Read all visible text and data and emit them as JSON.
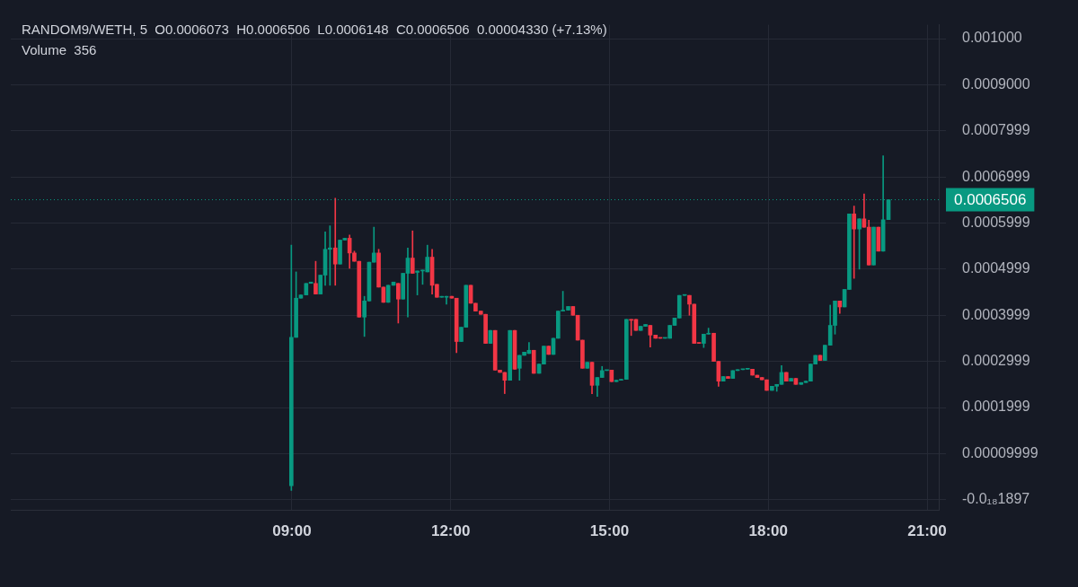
{
  "chart_data": {
    "type": "candlestick",
    "title": "RANDOM9/WETH, 5  O0.0006073  H0.0006506  L0.0006148  C0.0006506  0.00004330 (+7.13%)",
    "subtitle": "Volume  356",
    "x": [
      8.99,
      9.08,
      9.17,
      9.27,
      9.36,
      9.45,
      9.54,
      9.63,
      9.72,
      9.82,
      9.91,
      10.0,
      10.09,
      10.18,
      10.27,
      10.37,
      10.46,
      10.55,
      10.64,
      10.73,
      10.82,
      10.92,
      11.01,
      11.1,
      11.19,
      11.28,
      11.37,
      11.47,
      11.56,
      11.65,
      11.74,
      11.83,
      11.92,
      12.02,
      12.11,
      12.2,
      12.29,
      12.38,
      12.47,
      12.57,
      12.66,
      12.75,
      12.84,
      12.93,
      13.02,
      13.12,
      13.21,
      13.3,
      13.39,
      13.48,
      13.57,
      13.67,
      13.76,
      13.85,
      13.94,
      14.03,
      14.12,
      14.22,
      14.31,
      14.4,
      14.49,
      14.58,
      14.67,
      14.77,
      14.86,
      14.95,
      15.04,
      15.13,
      15.22,
      15.32,
      15.41,
      15.5,
      15.59,
      15.68,
      15.77,
      15.87,
      15.96,
      16.05,
      16.14,
      16.23,
      16.32,
      16.42,
      16.51,
      16.6,
      16.69,
      16.78,
      16.87,
      16.97,
      17.06,
      17.15,
      17.24,
      17.33,
      17.42,
      17.52,
      17.61,
      17.7,
      17.79,
      17.88,
      17.97,
      18.07,
      18.16,
      18.25,
      18.34,
      18.43,
      18.52,
      18.62,
      18.71,
      18.8,
      18.89,
      18.98,
      19.07,
      19.17,
      19.26,
      19.35,
      19.44,
      19.53,
      19.62,
      19.72,
      19.81,
      19.9,
      19.99,
      20.08,
      20.17,
      20.27
    ],
    "series": [
      {
        "type": "candlestick",
        "ohlc": [
          [
            3e-05,
            0.000552,
            2e-05,
            0.000352
          ],
          [
            0.000352,
            0.000494,
            0.000352,
            0.000437
          ],
          [
            0.000437,
            0.000444,
            0.000437,
            0.000444
          ],
          [
            0.000444,
            0.000469,
            0.000444,
            0.000469
          ],
          [
            0.000469,
            0.000472,
            0.000469,
            0.000472
          ],
          [
            0.000469,
            0.000517,
            0.000446,
            0.000446
          ],
          [
            0.000446,
            0.000487,
            0.000446,
            0.000487
          ],
          [
            0.000487,
            0.000581,
            0.000465,
            0.000543
          ],
          [
            0.000543,
            0.000594,
            0.000465,
            0.000546
          ],
          [
            0.000546,
            0.000654,
            0.000465,
            0.000511
          ],
          [
            0.000511,
            0.000563,
            0.000511,
            0.000563
          ],
          [
            0.000563,
            0.000567,
            0.000563,
            0.000567
          ],
          [
            0.000567,
            0.000574,
            0.000502,
            0.000535
          ],
          [
            0.000535,
            0.000539,
            0.000517,
            0.000517
          ],
          [
            0.000517,
            0.000517,
            0.000396,
            0.000396
          ],
          [
            0.000396,
            0.000441,
            0.000354,
            0.000431
          ],
          [
            0.000431,
            0.000515,
            0.000431,
            0.000515
          ],
          [
            0.000515,
            0.000591,
            0.000515,
            0.000535
          ],
          [
            0.000535,
            0.000543,
            0.000461,
            0.000461
          ],
          [
            0.000461,
            0.000461,
            0.000428,
            0.000428
          ],
          [
            0.000428,
            0.000465,
            0.000428,
            0.000465
          ],
          [
            0.000465,
            0.000472,
            0.000465,
            0.000472
          ],
          [
            0.000469,
            0.000469,
            0.000383,
            0.000435
          ],
          [
            0.000435,
            0.000491,
            0.000435,
            0.000491
          ],
          [
            0.000491,
            0.000546,
            0.000396,
            0.000524
          ],
          [
            0.000524,
            0.000583,
            0.000491,
            0.000491
          ],
          [
            0.000493,
            0.000496,
            0.000444,
            0.000496
          ],
          [
            0.000496,
            0.000498,
            0.000467,
            0.000498
          ],
          [
            0.000494,
            0.000552,
            0.000494,
            0.000526
          ],
          [
            0.000526,
            0.000543,
            0.000446,
            0.000465
          ],
          [
            0.000467,
            0.000467,
            0.000439,
            0.000439
          ],
          [
            0.000439,
            0.000441,
            0.000439,
            0.000441
          ],
          [
            0.000439,
            0.000441,
            0.000424,
            0.000441
          ],
          [
            0.000441,
            0.000441,
            0.000437,
            0.000437
          ],
          [
            0.000437,
            0.000437,
            0.000319,
            0.000343
          ],
          [
            0.000343,
            0.000374,
            0.000343,
            0.000374
          ],
          [
            0.000374,
            0.000465,
            0.000374,
            0.000465
          ],
          [
            0.000465,
            0.000465,
            0.000426,
            0.000426
          ],
          [
            0.000426,
            0.000426,
            0.000409,
            0.000409
          ],
          [
            0.000409,
            0.000409,
            0.000402,
            0.000402
          ],
          [
            0.000402,
            0.000402,
            0.000339,
            0.000339
          ],
          [
            0.000339,
            0.000367,
            0.000339,
            0.000367
          ],
          [
            0.000367,
            0.000367,
            0.000281,
            0.000281
          ],
          [
            0.000281,
            0.000281,
            0.000276,
            0.000276
          ],
          [
            0.000276,
            0.000276,
            0.00023,
            0.000259
          ],
          [
            0.000259,
            0.000367,
            0.000259,
            0.000367
          ],
          [
            0.000367,
            0.000367,
            0.000283,
            0.000283
          ],
          [
            0.000285,
            0.000313,
            0.000259,
            0.000313
          ],
          [
            0.000313,
            0.00032,
            0.000313,
            0.00032
          ],
          [
            0.000317,
            0.000341,
            0.000317,
            0.000324
          ],
          [
            0.000324,
            0.000324,
            0.000274,
            0.000274
          ],
          [
            0.000274,
            0.000294,
            0.000274,
            0.000294
          ],
          [
            0.000294,
            0.000333,
            0.000294,
            0.000333
          ],
          [
            0.000333,
            0.000333,
            0.000315,
            0.000315
          ],
          [
            0.000315,
            0.00035,
            0.000315,
            0.00035
          ],
          [
            0.00035,
            0.000409,
            0.00035,
            0.000409
          ],
          [
            0.000409,
            0.000452,
            0.000409,
            0.000411
          ],
          [
            0.000411,
            0.000419,
            0.000411,
            0.000419
          ],
          [
            0.000419,
            0.000419,
            0.0004,
            0.0004
          ],
          [
            0.0004,
            0.0004,
            0.000346,
            0.000346
          ],
          [
            0.000346,
            0.000346,
            0.000285,
            0.000285
          ],
          [
            0.000285,
            0.000298,
            0.000285,
            0.000298
          ],
          [
            0.000298,
            0.000298,
            0.00023,
            0.000248
          ],
          [
            0.000248,
            0.000265,
            0.000224,
            0.000265
          ],
          [
            0.000265,
            0.000289,
            0.000265,
            0.00028
          ],
          [
            0.00028,
            0.000281,
            0.00028,
            0.000281
          ],
          [
            0.000281,
            0.000281,
            0.000256,
            0.000256
          ],
          [
            0.000256,
            0.000259,
            0.000256,
            0.000259
          ],
          [
            0.000259,
            0.000261,
            0.000259,
            0.000261
          ],
          [
            0.000261,
            0.000391,
            0.000261,
            0.000391
          ],
          [
            0.000391,
            0.000391,
            0.000356,
            0.000389
          ],
          [
            0.000391,
            0.000391,
            0.000367,
            0.000367
          ],
          [
            0.000367,
            0.000376,
            0.000367,
            0.000376
          ],
          [
            0.000376,
            0.00038,
            0.000376,
            0.00038
          ],
          [
            0.000378,
            0.000378,
            0.000331,
            0.000357
          ],
          [
            0.000357,
            0.000357,
            0.00035,
            0.00035
          ],
          [
            0.000351,
            0.000351,
            0.00035,
            0.00035
          ],
          [
            0.00035,
            0.000351,
            0.00035,
            0.000351
          ],
          [
            0.00035,
            0.000378,
            0.00035,
            0.000378
          ],
          [
            0.000378,
            0.000394,
            0.000378,
            0.000394
          ],
          [
            0.000394,
            0.000443,
            0.000394,
            0.000443
          ],
          [
            0.000443,
            0.000444,
            0.000443,
            0.000444
          ],
          [
            0.000443,
            0.000443,
            0.0004,
            0.000424
          ],
          [
            0.000424,
            0.000424,
            0.000339,
            0.000339
          ],
          [
            0.00034,
            0.00034,
            0.000339,
            0.000339
          ],
          [
            0.000339,
            0.000359,
            0.00033,
            0.000359
          ],
          [
            0.000359,
            0.000372,
            0.000359,
            0.000361
          ],
          [
            0.000361,
            0.000361,
            0.0003,
            0.0003
          ],
          [
            0.0003,
            0.0003,
            0.000246,
            0.000257
          ],
          [
            0.000257,
            0.000267,
            0.000257,
            0.000267
          ],
          [
            0.000267,
            0.000267,
            0.000263,
            0.000263
          ],
          [
            0.000263,
            0.00028,
            0.000263,
            0.00028
          ],
          [
            0.00028,
            0.000282,
            0.00028,
            0.000282
          ],
          [
            0.000282,
            0.000283,
            0.000282,
            0.000283
          ],
          [
            0.000283,
            0.000284,
            0.000283,
            0.000284
          ],
          [
            0.000283,
            0.000283,
            0.00027,
            0.00027
          ],
          [
            0.00027,
            0.00027,
            0.000265,
            0.000265
          ],
          [
            0.000265,
            0.000265,
            0.00026,
            0.00026
          ],
          [
            0.00026,
            0.00026,
            0.000237,
            0.000237
          ],
          [
            0.000237,
            0.000246,
            0.000237,
            0.000246
          ],
          [
            0.000246,
            0.00025,
            0.000235,
            0.00025
          ],
          [
            0.00025,
            0.000291,
            0.00025,
            0.000276
          ],
          [
            0.000276,
            0.000276,
            0.000257,
            0.000257
          ],
          [
            0.000257,
            0.000263,
            0.000257,
            0.000263
          ],
          [
            0.000263,
            0.000263,
            0.00025,
            0.00025
          ],
          [
            0.00025,
            0.000254,
            0.00025,
            0.000254
          ],
          [
            0.000254,
            0.000257,
            0.000254,
            0.000257
          ],
          [
            0.000257,
            0.000294,
            0.000257,
            0.000294
          ],
          [
            0.000294,
            0.000313,
            0.000294,
            0.000313
          ],
          [
            0.000313,
            0.000313,
            0.000302,
            0.000302
          ],
          [
            0.000302,
            0.000335,
            0.000302,
            0.000335
          ],
          [
            0.000335,
            0.000422,
            0.000335,
            0.000378
          ],
          [
            0.000378,
            0.000431,
            0.000359,
            0.000431
          ],
          [
            0.000431,
            0.000431,
            0.000404,
            0.000418
          ],
          [
            0.000418,
            0.000456,
            0.000418,
            0.000456
          ],
          [
            0.000456,
            0.00062,
            0.000456,
            0.00062
          ],
          [
            0.00062,
            0.000637,
            0.00048,
            0.000587
          ],
          [
            0.000587,
            0.000609,
            0.0005,
            0.000609
          ],
          [
            0.000609,
            0.000663,
            0.000591,
            0.000591
          ],
          [
            0.000591,
            0.000606,
            0.000509,
            0.000509
          ],
          [
            0.000509,
            0.000591,
            0.000509,
            0.000591
          ],
          [
            0.000591,
            0.000591,
            0.000539,
            0.000539
          ],
          [
            0.000539,
            0.000746,
            0.000539,
            0.000607
          ],
          [
            0.0006073,
            0.0006506,
            0.0006073,
            0.0006506
          ]
        ],
        "colors": [
          "#089981",
          "#089981",
          "#089981",
          "#089981",
          "#089981",
          "#f23645",
          "#089981",
          "#089981",
          "#089981",
          "#f23645",
          "#089981",
          "#089981",
          "#f23645",
          "#f23645",
          "#f23645",
          "#089981",
          "#089981",
          "#089981",
          "#f23645",
          "#f23645",
          "#089981",
          "#089981",
          "#f23645",
          "#089981",
          "#089981",
          "#f23645",
          "#089981",
          "#089981",
          "#089981",
          "#f23645",
          "#f23645",
          "#089981",
          "#089981",
          "#f23645",
          "#f23645",
          "#089981",
          "#089981",
          "#f23645",
          "#f23645",
          "#f23645",
          "#f23645",
          "#089981",
          "#f23645",
          "#f23645",
          "#f23645",
          "#089981",
          "#f23645",
          "#089981",
          "#089981",
          "#089981",
          "#f23645",
          "#089981",
          "#089981",
          "#f23645",
          "#089981",
          "#089981",
          "#089981",
          "#089981",
          "#f23645",
          "#f23645",
          "#f23645",
          "#089981",
          "#f23645",
          "#089981",
          "#089981",
          "#089981",
          "#f23645",
          "#089981",
          "#089981",
          "#089981",
          "#f23645",
          "#f23645",
          "#089981",
          "#089981",
          "#f23645",
          "#f23645",
          "#f23645",
          "#089981",
          "#089981",
          "#089981",
          "#089981",
          "#089981",
          "#f23645",
          "#f23645",
          "#f23645",
          "#089981",
          "#089981",
          "#f23645",
          "#f23645",
          "#089981",
          "#f23645",
          "#089981",
          "#089981",
          "#089981",
          "#089981",
          "#f23645",
          "#f23645",
          "#f23645",
          "#f23645",
          "#089981",
          "#089981",
          "#089981",
          "#f23645",
          "#089981",
          "#f23645",
          "#089981",
          "#089981",
          "#089981",
          "#089981",
          "#f23645",
          "#089981",
          "#089981",
          "#089981",
          "#f23645",
          "#089981",
          "#089981",
          "#f23645",
          "#089981",
          "#f23645",
          "#f23645",
          "#089981",
          "#f23645",
          "#089981",
          "#089981"
        ]
      }
    ],
    "xlim": [
      3.69,
      21.22
    ],
    "xticks": [
      {
        "value": 9,
        "label": "09:00"
      },
      {
        "value": 12,
        "label": "12:00"
      },
      {
        "value": 15,
        "label": "15:00"
      },
      {
        "value": 18,
        "label": "18:00"
      },
      {
        "value": 21,
        "label": "21:00"
      }
    ],
    "ylim": [
      -2.2e-05,
      0.00103
    ],
    "yticks": [
      {
        "value": -1.897e-19,
        "label": "-0.0₁₈1897"
      },
      {
        "value": 9.999e-05,
        "label": "0.00009999"
      },
      0.0001999,
      0.0002999,
      0.0003999,
      0.0004999,
      0.0005999,
      0.0006999,
      0.0007999,
      {
        "value": 0.0009,
        "label": "0.0009000"
      },
      {
        "value": 0.001,
        "label": "0.001000"
      }
    ],
    "ref_lines": [
      {
        "axis": "y",
        "value": 0.0006506,
        "label": "0.0006506",
        "color": "#089981",
        "line_style": "dotted"
      }
    ],
    "grid": true,
    "legend": false
  }
}
